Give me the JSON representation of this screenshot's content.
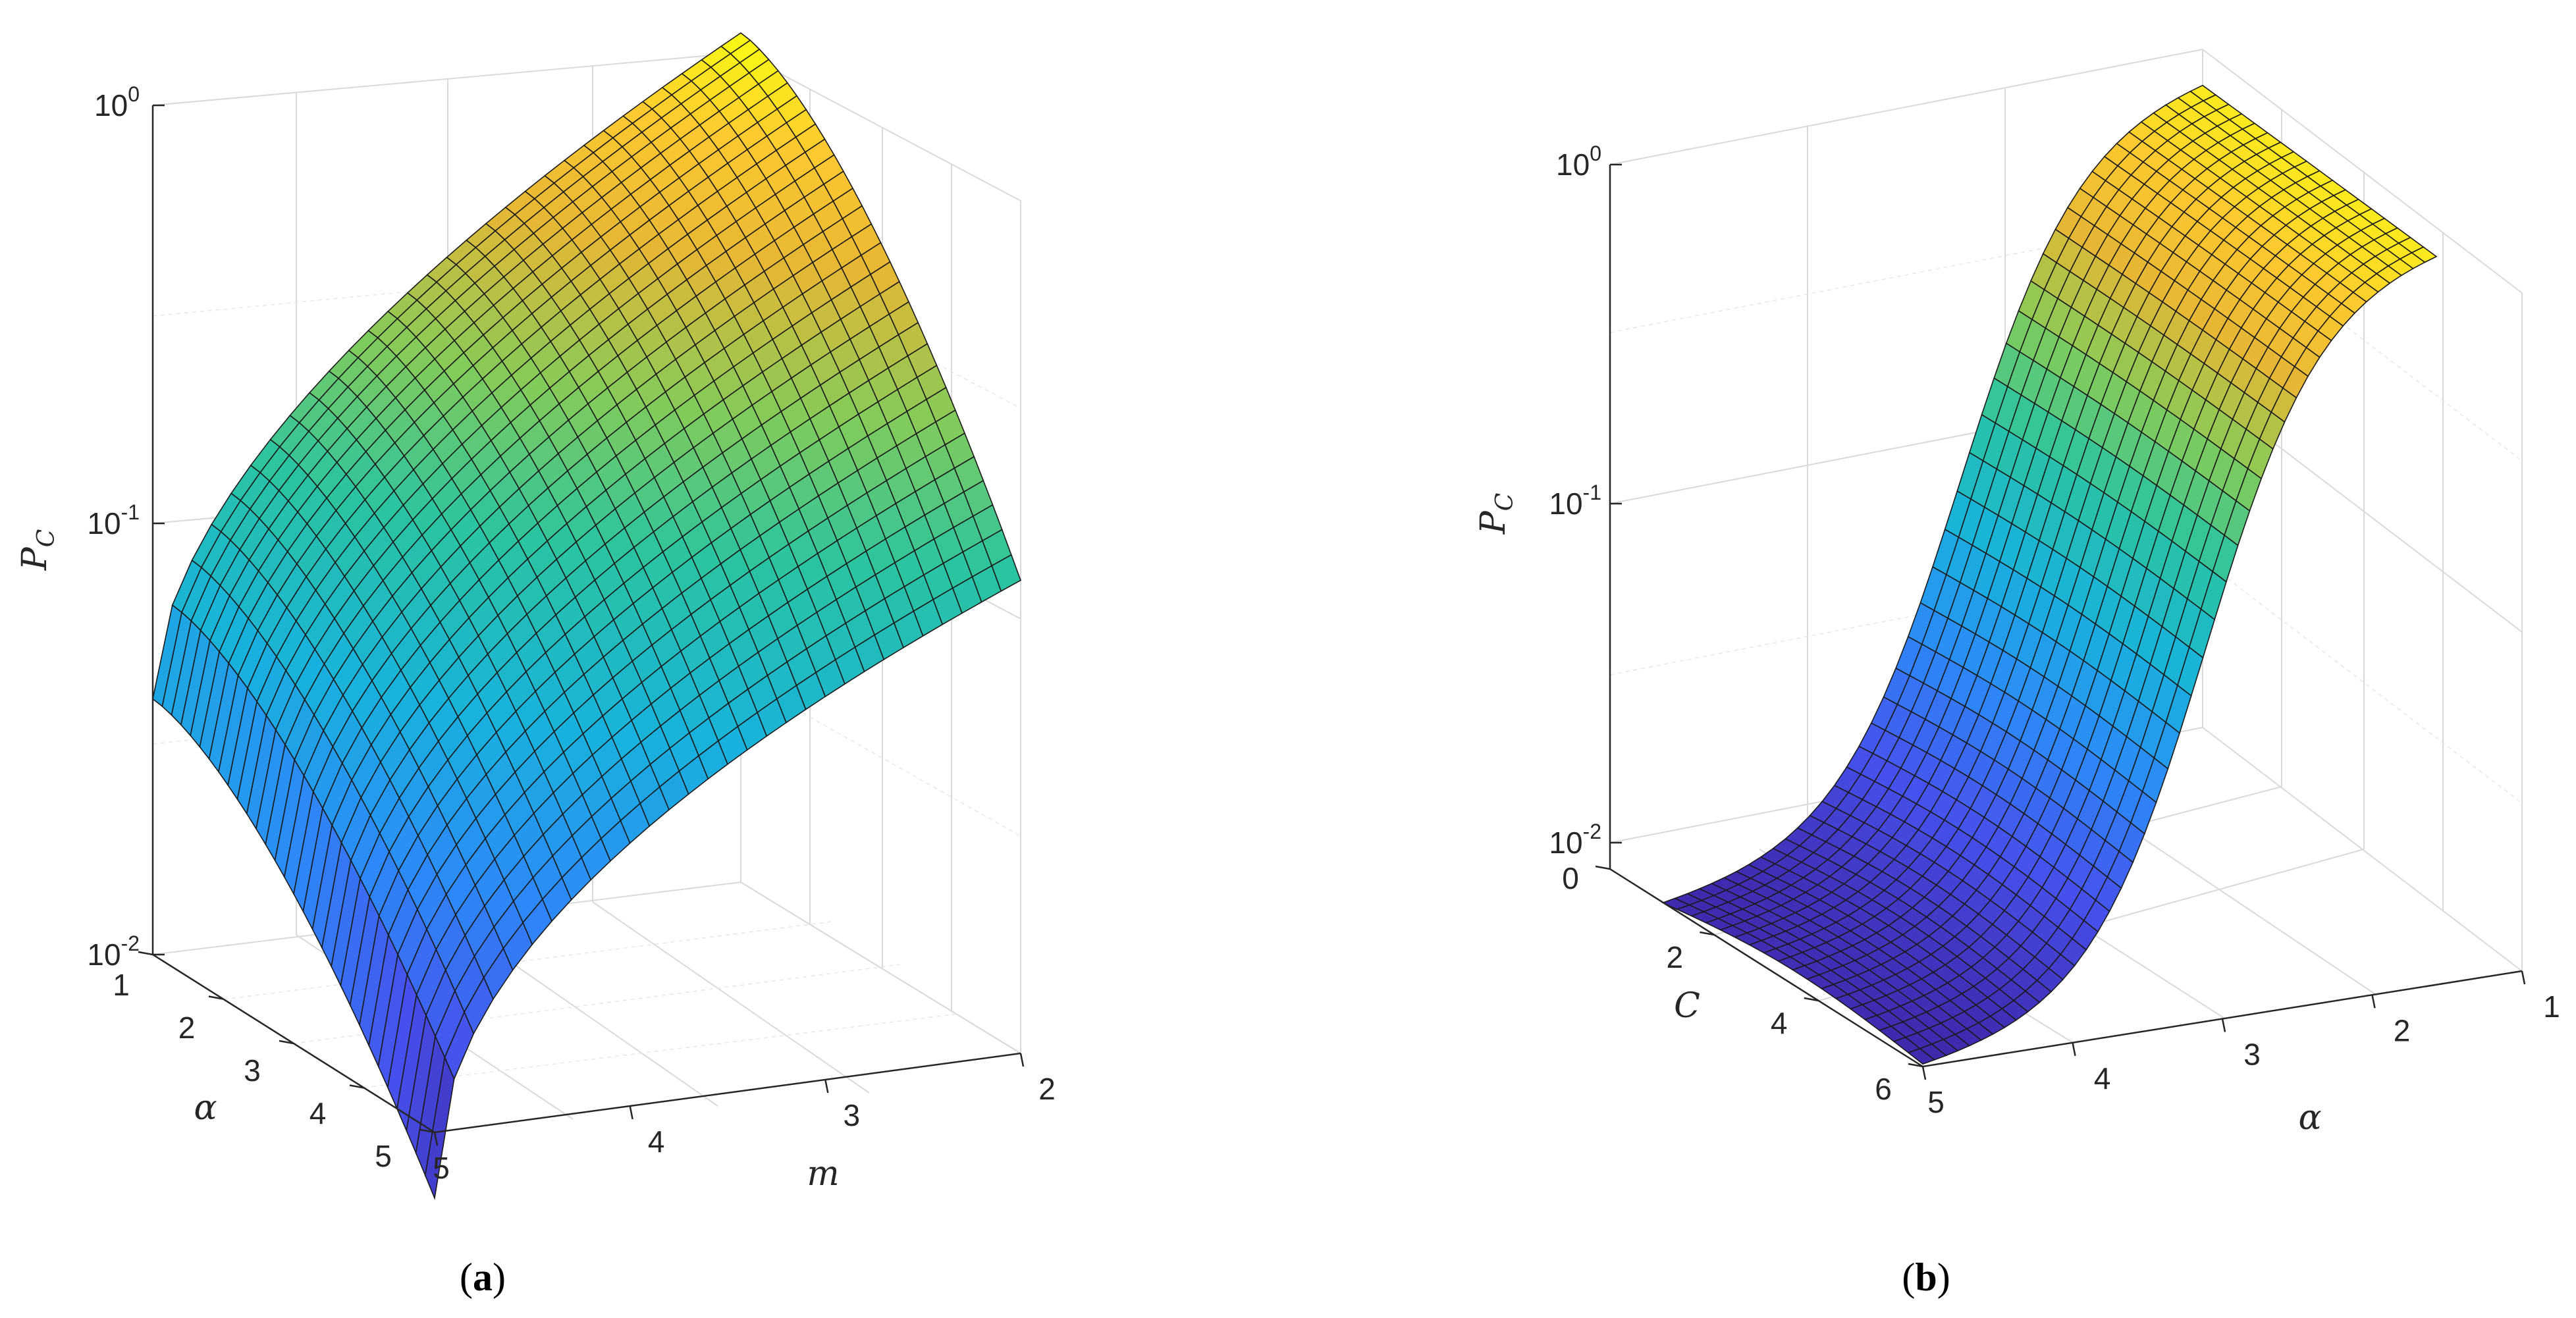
{
  "chart_data": [
    {
      "type": "surface",
      "panel_label": "a",
      "xlabel": "m",
      "ylabel": "α",
      "zlabel_main": "P",
      "zlabel_sub": "C",
      "zscale": "log",
      "zlim": [
        0.01,
        1
      ],
      "xlim": [
        2,
        5
      ],
      "ylim": [
        1,
        5
      ],
      "x_ticks": [
        "2",
        "3",
        "4",
        "5"
      ],
      "y_ticks": [
        "1",
        "2",
        "3",
        "4",
        "5"
      ],
      "z_ticks": [
        {
          "base": "10",
          "exp": "0"
        },
        {
          "base": "10",
          "exp": "-1"
        },
        {
          "base": "10",
          "exp": "-2"
        }
      ],
      "grid": true,
      "colormap": "parula",
      "corner_values": [
        {
          "m": 5,
          "alpha": 1,
          "P_C": 0.04
        },
        {
          "m": 5,
          "alpha": 5,
          "P_C": 0.007
        },
        {
          "m": 2,
          "alpha": 5,
          "P_C": 0.13
        },
        {
          "m": 2,
          "alpha": 1,
          "P_C": 1.0
        }
      ]
    },
    {
      "type": "surface",
      "panel_label": "b",
      "xlabel": "α",
      "ylabel": "C",
      "zlabel_main": "P",
      "zlabel_sub": "C",
      "zscale": "log",
      "zlim": [
        0.008,
        1
      ],
      "xlim": [
        1,
        5
      ],
      "ylim": [
        0,
        6
      ],
      "x_ticks": [
        "1",
        "2",
        "3",
        "4",
        "5"
      ],
      "y_ticks": [
        "0",
        "2",
        "4",
        "6"
      ],
      "z_ticks": [
        {
          "base": "10",
          "exp": "0"
        },
        {
          "base": "10",
          "exp": "-1"
        },
        {
          "base": "10",
          "exp": "-2"
        }
      ],
      "grid": true,
      "colormap": "parula",
      "corner_values": [
        {
          "alpha": 5,
          "C": 0.3,
          "P_C": 0.009
        },
        {
          "alpha": 5,
          "C": 4.8,
          "P_C": 0.009
        },
        {
          "alpha": 1,
          "C": 0.3,
          "P_C": 0.97
        },
        {
          "alpha": 1,
          "C": 4.8,
          "P_C": 0.97
        }
      ]
    }
  ]
}
